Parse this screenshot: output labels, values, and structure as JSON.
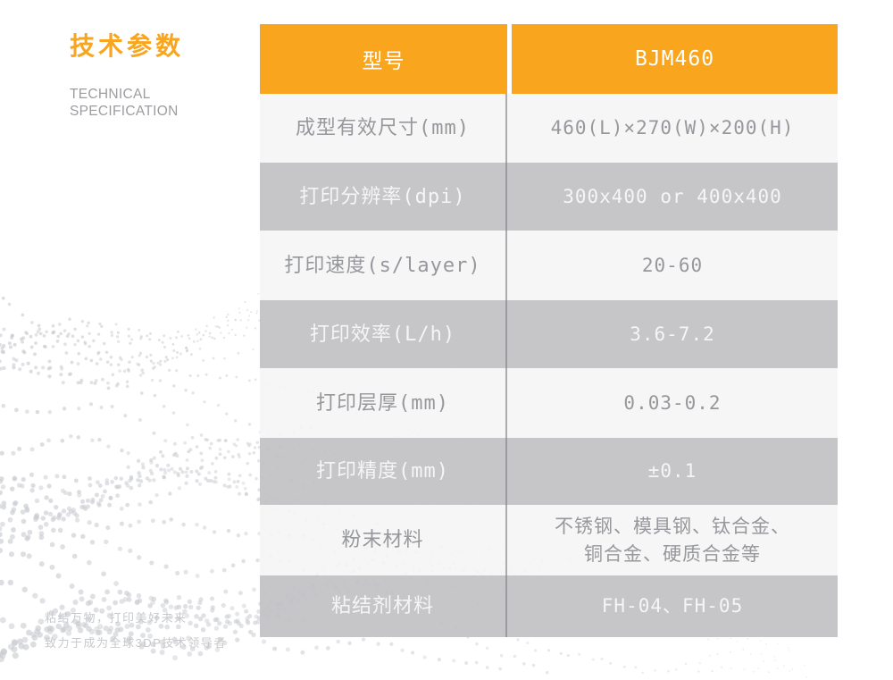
{
  "header": {
    "title_cn": "技术参数",
    "title_en_line1": "TECHNICAL",
    "title_en_line2": "SPECIFICATION"
  },
  "table": {
    "header": {
      "param": "型号",
      "value": "BJM460"
    },
    "rows": [
      {
        "param": "成型有效尺寸(mm)",
        "value": "460(L)×270(W)×200(H)",
        "shade": "light"
      },
      {
        "param": "打印分辨率(dpi)",
        "value": "300x400 or 400x400",
        "shade": "dark"
      },
      {
        "param": "打印速度(s/layer)",
        "value": "20-60",
        "shade": "light"
      },
      {
        "param": "打印效率(L/h)",
        "value": "3.6-7.2",
        "shade": "dark"
      },
      {
        "param": "打印层厚(mm)",
        "value": "0.03-0.2",
        "shade": "light"
      },
      {
        "param": "打印精度(mm)",
        "value": "±0.1",
        "shade": "dark"
      },
      {
        "param": "粉末材料",
        "value": "不锈钢、模具钢、钛合金、\n铜合金、硬质合金等",
        "shade": "light"
      },
      {
        "param": "粘结剂材料",
        "value": "FH-04、FH-05",
        "shade": "dark"
      }
    ]
  },
  "footer": {
    "slogan_line1": "粘结万物，打印美好未来",
    "slogan_line2": "致力于成为全球3DP技术领导者"
  },
  "colors": {
    "accent_orange": "#F9A51E",
    "row_dark": "rgba(194,194,197,0.93)",
    "row_light": "rgba(245,245,246,0.88)",
    "divider_gray": "rgba(130,132,138,0.65)",
    "label_gray": "#97989C",
    "value_on_dark": "#F5F5F6",
    "title_en_gray": "#9B9DA0",
    "slogan_gray": "#C7C9CC",
    "dot_gray": "#C9CBD0"
  }
}
